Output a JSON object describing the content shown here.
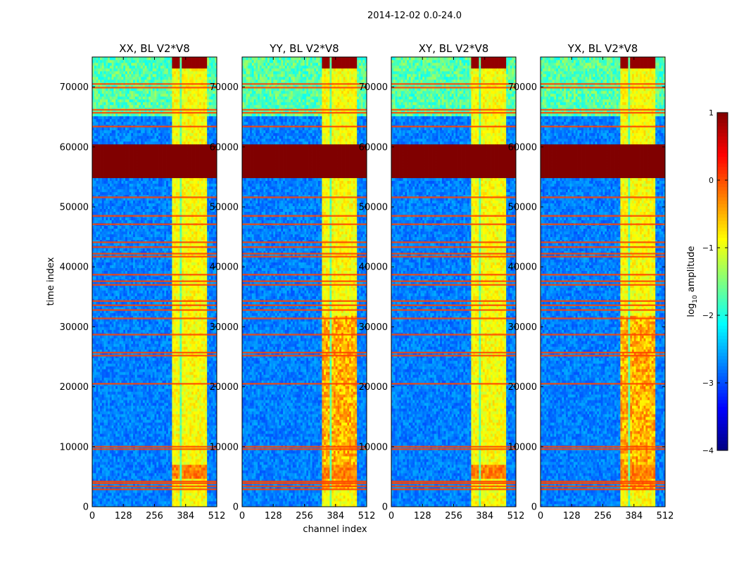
{
  "suptitle": "2014-12-02 0.0-24.0",
  "colormap": "jet",
  "chart_data": {
    "type": "heatmap",
    "x_label": "channel index",
    "y_label": "time index",
    "x_ticks": [
      0,
      128,
      256,
      384,
      512
    ],
    "y_ticks": [
      0,
      10000,
      20000,
      30000,
      40000,
      50000,
      60000,
      70000
    ],
    "xlim": [
      0,
      512
    ],
    "ylim": [
      0,
      75000
    ],
    "colorbar": {
      "label": "log10 amplitude",
      "label_base": "log",
      "label_sub": "10",
      "label_rest": " amplitude",
      "ticks": [
        1,
        0,
        -1,
        -2,
        -3,
        -4
      ],
      "tick_labels": [
        "1",
        "0",
        "−1",
        "−2",
        "−3",
        "−4"
      ],
      "range": [
        -4,
        1
      ]
    },
    "panels": [
      {
        "title": "XX, BL V2*V8",
        "pol": "XX"
      },
      {
        "title": "YY, BL V2*V8",
        "pol": "YY"
      },
      {
        "title": "XY, BL V2*V8",
        "pol": "XY"
      },
      {
        "title": "YX, BL V2*V8",
        "pol": "YX"
      }
    ],
    "features": {
      "saturated_time_range": [
        55000,
        60500
      ],
      "flagged_channel_range": [
        325,
        475
      ],
      "noisy_time_range": [
        65000,
        75000
      ]
    }
  }
}
